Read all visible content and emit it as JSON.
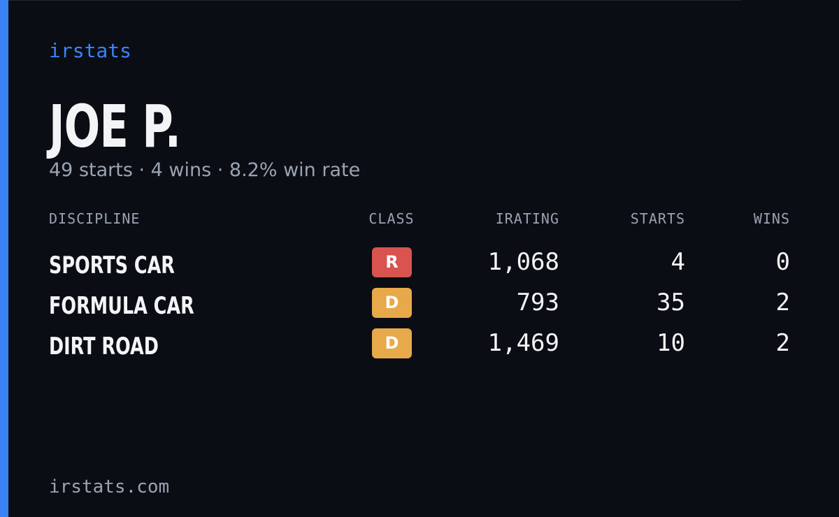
{
  "header": {
    "brand": "irstats",
    "name": "JOE P.",
    "summary": "49 starts · 4 wins · 8.2% win rate"
  },
  "table": {
    "columns": [
      "DISCIPLINE",
      "CLASS",
      "IRATING",
      "STARTS",
      "WINS"
    ],
    "rows": [
      {
        "discipline": "SPORTS CAR",
        "class": "R",
        "class_color": "#d9534f",
        "irating": "1,068",
        "starts": "4",
        "wins": "0"
      },
      {
        "discipline": "FORMULA CAR",
        "class": "D",
        "class_color": "#e8a94a",
        "irating": "793",
        "starts": "35",
        "wins": "2"
      },
      {
        "discipline": "DIRT ROAD",
        "class": "D",
        "class_color": "#e8a94a",
        "irating": "1,469",
        "starts": "10",
        "wins": "2"
      }
    ]
  },
  "footer": {
    "site": "irstats.com"
  }
}
